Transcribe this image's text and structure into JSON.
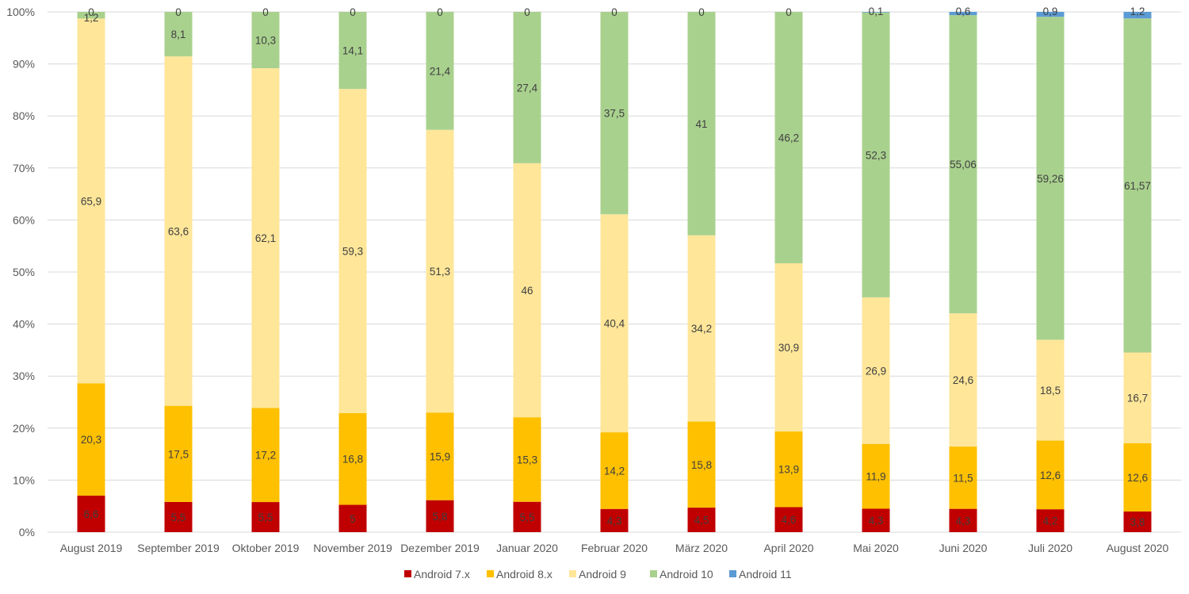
{
  "chart_data": {
    "type": "bar",
    "stacked": true,
    "normalized": true,
    "title": "",
    "xlabel": "",
    "ylabel": "",
    "ylim": [
      0,
      100
    ],
    "y_ticks": [
      "0%",
      "10%",
      "20%",
      "30%",
      "40%",
      "50%",
      "60%",
      "70%",
      "80%",
      "90%",
      "100%"
    ],
    "grid": true,
    "legend_position": "bottom",
    "categories": [
      "August 2019",
      "September 2019",
      "Oktober 2019",
      "November 2019",
      "Dezember 2019",
      "Januar 2020",
      "Februar 2020",
      "März 2020",
      "April 2020",
      "Mai 2020",
      "Juni 2020",
      "Juli 2020",
      "August 2020"
    ],
    "series": [
      {
        "name": "Android 7.x",
        "color": "#c00000",
        "labels": [
          "6,6",
          "5,5",
          "5,5",
          "5",
          "5,8",
          "5,5",
          "4,3",
          "4,5",
          "4,6",
          "4,3",
          "4,3",
          "4,2",
          "3,8"
        ],
        "values": [
          6.6,
          5.5,
          5.5,
          5.0,
          5.8,
          5.5,
          4.3,
          4.5,
          4.6,
          4.3,
          4.3,
          4.2,
          3.8
        ]
      },
      {
        "name": "Android 8.x",
        "color": "#ffc000",
        "labels": [
          "20,3",
          "17,5",
          "17,2",
          "16,8",
          "15,9",
          "15,3",
          "14,2",
          "15,8",
          "13,9",
          "11,9",
          "11,5",
          "12,6",
          "12,6"
        ],
        "values": [
          20.3,
          17.5,
          17.2,
          16.8,
          15.9,
          15.3,
          14.2,
          15.8,
          13.9,
          11.9,
          11.5,
          12.6,
          12.6
        ]
      },
      {
        "name": "Android 9",
        "color": "#ffe699",
        "labels": [
          "65,9",
          "63,6",
          "62,1",
          "59,3",
          "51,3",
          "46",
          "40,4",
          "34,2",
          "30,9",
          "26,9",
          "24,6",
          "18,5",
          "16,7"
        ],
        "values": [
          65.9,
          63.6,
          62.1,
          59.3,
          51.3,
          46.0,
          40.4,
          34.2,
          30.9,
          26.9,
          24.6,
          18.5,
          16.7
        ]
      },
      {
        "name": "Android 10",
        "color": "#a9d18e",
        "labels": [
          "1,2",
          "8,1",
          "10,3",
          "14,1",
          "21,4",
          "27,4",
          "37,5",
          "41",
          "46,2",
          "52,3",
          "55,06",
          "59,26",
          "61,57"
        ],
        "values": [
          1.2,
          8.1,
          10.3,
          14.1,
          21.4,
          27.4,
          37.5,
          41.0,
          46.2,
          52.3,
          55.06,
          59.26,
          61.57
        ]
      },
      {
        "name": "Android 11",
        "color": "#5b9bd5",
        "labels": [
          "0",
          "0",
          "0",
          "0",
          "0",
          "0",
          "0",
          "0",
          "0",
          "0,1",
          "0,6",
          "0,9",
          "1,2"
        ],
        "values": [
          0,
          0,
          0,
          0,
          0,
          0,
          0,
          0,
          0,
          0.1,
          0.6,
          0.9,
          1.2
        ]
      }
    ]
  }
}
